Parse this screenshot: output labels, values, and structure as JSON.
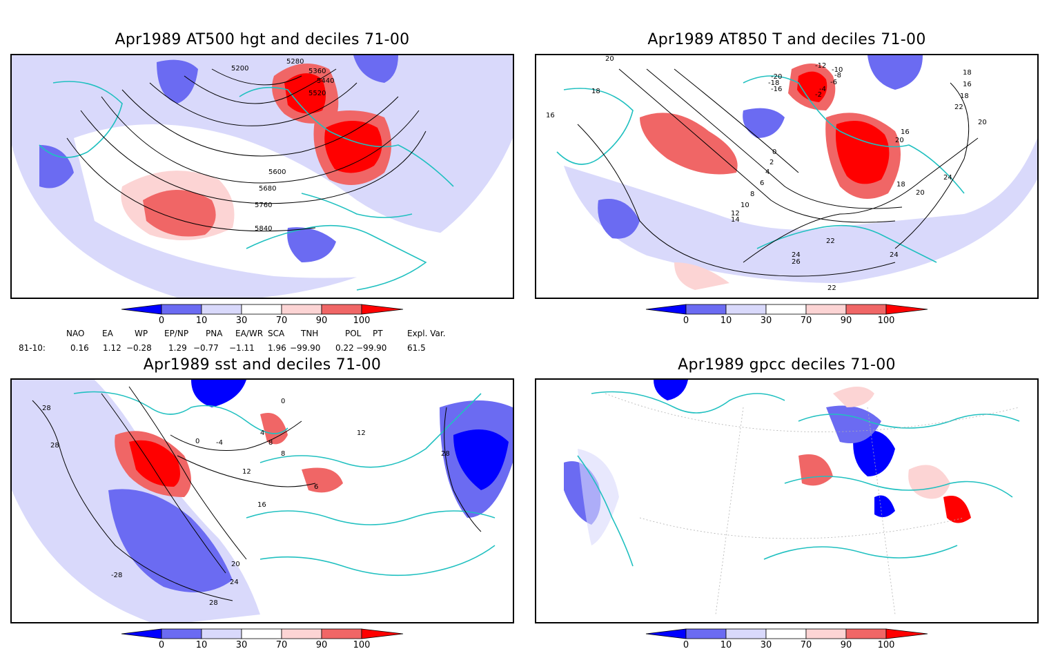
{
  "panels": [
    {
      "title": "Apr1989 AT500 hgt and deciles 71-00",
      "contour_labels": [
        "5200",
        "5280",
        "5360",
        "5440",
        "5520",
        "5600",
        "5680",
        "5760",
        "5840"
      ]
    },
    {
      "title": "Apr1989 AT850 T and deciles 71-00",
      "contour_labels": [
        "20",
        "18",
        "16",
        "-12",
        "-10",
        "-8",
        "-6",
        "-20",
        "-18",
        "-16",
        "-4",
        "-2",
        "0",
        "2",
        "4",
        "6",
        "8",
        "10",
        "12",
        "14",
        "16",
        "18",
        "20",
        "22",
        "24",
        "26",
        "24",
        "22",
        "20",
        "18",
        "16",
        "18",
        "22",
        "24",
        "20"
      ]
    },
    {
      "title": "Apr1989 sst and deciles 71-00",
      "contour_labels": [
        "28",
        "28",
        "0",
        "-4",
        "0",
        "4",
        "8",
        "12",
        "16",
        "20",
        "24",
        "28",
        "-28",
        "28",
        "12",
        "8",
        "6"
      ]
    },
    {
      "title": "Apr1989 gpcc deciles 71-00",
      "contour_labels": []
    }
  ],
  "colorbar": {
    "ticks": [
      "0",
      "10",
      "30",
      "70",
      "90",
      "100"
    ],
    "colors": [
      "#0000ff",
      "#6b6bf2",
      "#d9d9fb",
      "#ffffff",
      "#fcd4d4",
      "#f06666",
      "#ff0000"
    ]
  },
  "indices": {
    "headers": [
      "NAO",
      "EA",
      "WP",
      "EP/NP",
      "PNA",
      "EA/WR",
      "SCA",
      "TNH",
      "POL",
      "PT",
      "Expl. Var."
    ],
    "row_label": "81-10:",
    "values": [
      "0.16",
      "1.12",
      "−0.28",
      "1.29",
      "−0.77",
      "−1.11",
      "1.96",
      "−99.90",
      "0.22",
      "−99.90",
      "61.5"
    ]
  }
}
